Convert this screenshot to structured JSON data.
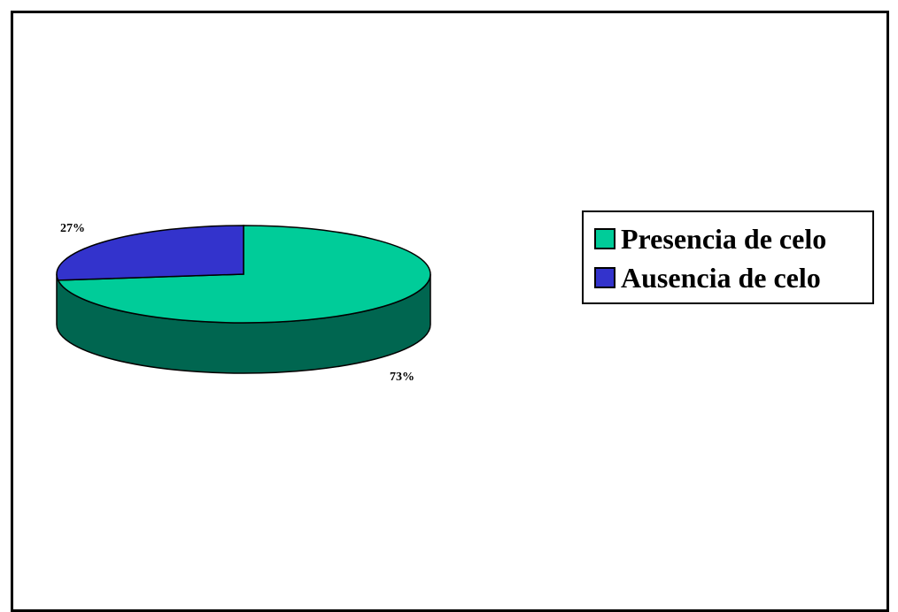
{
  "chart_data": {
    "type": "pie",
    "style": "3d",
    "categories": [
      "Presencia de celo",
      "Ausencia de celo"
    ],
    "values": [
      73,
      27
    ],
    "labels": [
      "73%",
      "27%"
    ],
    "colors": [
      "#00cc99",
      "#3333cc"
    ],
    "side_colors": [
      "#006650",
      "#1a1a66"
    ],
    "legend_position": "right"
  }
}
